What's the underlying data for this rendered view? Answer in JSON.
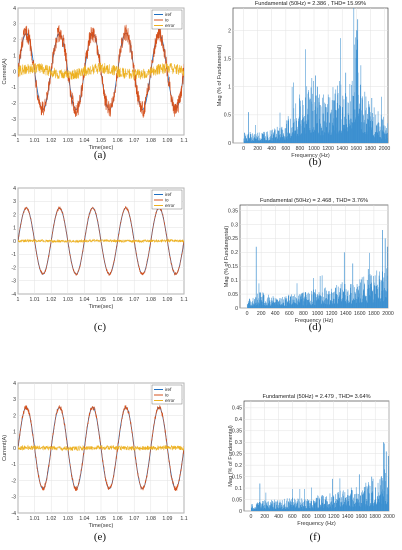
{
  "colors": {
    "iref": "#1f6fc2",
    "io": "#d4501c",
    "error": "#edb120",
    "spectrum": "#3b8fd0",
    "grid": "#e2e2e2"
  },
  "chart_data": [
    {
      "id": "a",
      "panel_label": "(a)",
      "type": "line",
      "title": "",
      "xlabel": "Time(sec)",
      "ylabel": "Current(A)",
      "xlim": [
        1,
        1.1
      ],
      "ylim": [
        -4,
        4
      ],
      "xticks": [
        "1",
        "1.01",
        "1.02",
        "1.03",
        "1.04",
        "1.05",
        "1.06",
        "1.07",
        "1.08",
        "1.09",
        "1.1"
      ],
      "yticks": [
        "-4",
        "-3",
        "-2",
        "-1",
        "0",
        "1",
        "2",
        "3",
        "4"
      ],
      "grid": true,
      "legend_position": "top-right",
      "series": [
        {
          "name": "iref",
          "kind": "sine",
          "frequency_hz": 50,
          "amplitude": 2.4,
          "noise": 0
        },
        {
          "name": "io",
          "kind": "sine",
          "frequency_hz": 50,
          "amplitude": 2.4,
          "noise": 0.55
        },
        {
          "name": "error",
          "kind": "noise",
          "frequency_hz": 50,
          "amplitude": 0.2,
          "noise": 0.35
        }
      ]
    },
    {
      "id": "b",
      "panel_label": "(b)",
      "type": "bar",
      "title": "Fundamental (50Hz) = 2.386 , THD= 15.99%",
      "xlabel": "Frequency (Hz)",
      "ylabel": "Mag (% of Fundamental)",
      "xlim": [
        -150,
        2050
      ],
      "ylim": [
        0,
        2.4
      ],
      "xticks": [
        "0",
        "200",
        "400",
        "600",
        "800",
        "1000",
        "1200",
        "1400",
        "1600",
        "1800",
        "2000"
      ],
      "yticks": [
        "0",
        "0.5",
        "1",
        "1.5",
        "2"
      ],
      "grid": true,
      "envelope": [
        [
          0,
          0.2
        ],
        [
          200,
          0.2
        ],
        [
          400,
          0.25
        ],
        [
          600,
          0.4
        ],
        [
          800,
          0.9
        ],
        [
          1000,
          1.25
        ],
        [
          1100,
          0.9
        ],
        [
          1200,
          0.9
        ],
        [
          1400,
          1.2
        ],
        [
          1500,
          1.3
        ],
        [
          1550,
          1.85
        ],
        [
          1600,
          2.15
        ],
        [
          1700,
          1.1
        ],
        [
          1800,
          0.7
        ],
        [
          1900,
          0.6
        ],
        [
          2000,
          0.45
        ]
      ],
      "spikes": [
        [
          1620,
          2.2
        ],
        [
          1570,
          1.75
        ],
        [
          1020,
          1.2
        ],
        [
          1450,
          1.25
        ],
        [
          1820,
          0.8
        ],
        [
          70,
          0.55
        ]
      ]
    },
    {
      "id": "c",
      "panel_label": "(c)",
      "type": "line",
      "title": "",
      "xlabel": "Time(sec)",
      "ylabel": "",
      "xlim": [
        1,
        1.1
      ],
      "ylim": [
        -4,
        4
      ],
      "xticks": [
        "1",
        "1.01",
        "1.02",
        "1.03",
        "1.04",
        "1.05",
        "1.06",
        "1.07",
        "1.08",
        "1.09",
        "1.1"
      ],
      "yticks": [
        "-4",
        "-3",
        "-2",
        "-1",
        "0",
        "1",
        "2",
        "3",
        "4"
      ],
      "grid": true,
      "legend_position": "top-right",
      "series": [
        {
          "name": "iref",
          "kind": "sine",
          "frequency_hz": 50,
          "amplitude": 2.5,
          "noise": 0
        },
        {
          "name": "io",
          "kind": "sine",
          "frequency_hz": 50,
          "amplitude": 2.5,
          "noise": 0.12
        },
        {
          "name": "error",
          "kind": "noise",
          "frequency_hz": 50,
          "amplitude": 0.02,
          "noise": 0.1
        }
      ]
    },
    {
      "id": "d",
      "panel_label": "(d)",
      "type": "bar",
      "title": "Fundamental (50Hz) = 2.468 , THD= 3.76%",
      "xlabel": "Frequency (Hz)",
      "ylabel": "Mag (% of Fundamental)",
      "xlim": [
        -100,
        2000
      ],
      "ylim": [
        0,
        0.37
      ],
      "xticks": [
        "0",
        "200",
        "400",
        "600",
        "800",
        "1000",
        "1200",
        "1400",
        "1600",
        "1800",
        "2000"
      ],
      "yticks": [
        "0",
        "0.05",
        "0.1",
        "0.15",
        "0.2",
        "0.25",
        "0.3",
        "0.35"
      ],
      "grid": true,
      "envelope": [
        [
          0,
          0.03
        ],
        [
          200,
          0.06
        ],
        [
          400,
          0.04
        ],
        [
          600,
          0.05
        ],
        [
          800,
          0.06
        ],
        [
          1000,
          0.07
        ],
        [
          1200,
          0.08
        ],
        [
          1400,
          0.1
        ],
        [
          1600,
          0.11
        ],
        [
          1800,
          0.13
        ],
        [
          2000,
          0.16
        ]
      ],
      "spikes": [
        [
          1920,
          0.28
        ],
        [
          1960,
          0.25
        ],
        [
          1990,
          0.22
        ],
        [
          1380,
          0.2
        ],
        [
          1500,
          0.16
        ],
        [
          130,
          0.22
        ],
        [
          1720,
          0.14
        ]
      ]
    },
    {
      "id": "e",
      "panel_label": "(e)",
      "type": "line",
      "title": "",
      "xlabel": "Time(sec)",
      "ylabel": "Current(A)",
      "xlim": [
        1,
        1.1
      ],
      "ylim": [
        -4,
        4
      ],
      "xticks": [
        "1",
        "1.01",
        "1.02",
        "1.03",
        "1.04",
        "1.05",
        "1.06",
        "1.07",
        "1.08",
        "1.09",
        "1.1"
      ],
      "yticks": [
        "-4",
        "-3",
        "-2",
        "-1",
        "0",
        "1",
        "2",
        "3",
        "4"
      ],
      "grid": true,
      "legend_position": "top-right",
      "series": [
        {
          "name": "iref",
          "kind": "sine",
          "frequency_hz": 50,
          "amplitude": 2.5,
          "noise": 0
        },
        {
          "name": "io",
          "kind": "sine",
          "frequency_hz": 50,
          "amplitude": 2.5,
          "noise": 0.16
        },
        {
          "name": "error",
          "kind": "noise",
          "frequency_hz": 50,
          "amplitude": 0.02,
          "noise": 0.14
        }
      ]
    },
    {
      "id": "f",
      "panel_label": "(f)",
      "type": "bar",
      "title": "Fundamental (50Hz) = 2.479 , THD= 3.64%",
      "xlabel": "Frequency (Hz)",
      "ylabel": "Mag (% of Fundamental)",
      "xlim": [
        -100,
        2000
      ],
      "ylim": [
        0,
        0.48
      ],
      "xticks": [
        "0",
        "200",
        "400",
        "600",
        "800",
        "1000",
        "1200",
        "1400",
        "1600",
        "1800",
        "2000"
      ],
      "yticks": [
        "0",
        "0.05",
        "0.1",
        "0.15",
        "0.2",
        "0.25",
        "0.3",
        "0.35",
        "0.4",
        "0.45"
      ],
      "grid": true,
      "envelope": [
        [
          0,
          0.03
        ],
        [
          200,
          0.05
        ],
        [
          400,
          0.05
        ],
        [
          600,
          0.06
        ],
        [
          800,
          0.06
        ],
        [
          1000,
          0.07
        ],
        [
          1200,
          0.08
        ],
        [
          1400,
          0.1
        ],
        [
          1600,
          0.12
        ],
        [
          1800,
          0.15
        ],
        [
          2000,
          0.2
        ]
      ],
      "spikes": [
        [
          1920,
          0.3
        ],
        [
          1960,
          0.26
        ],
        [
          1990,
          0.24
        ],
        [
          1180,
          0.14
        ],
        [
          1570,
          0.16
        ],
        [
          130,
          0.12
        ],
        [
          1750,
          0.15
        ]
      ]
    }
  ]
}
